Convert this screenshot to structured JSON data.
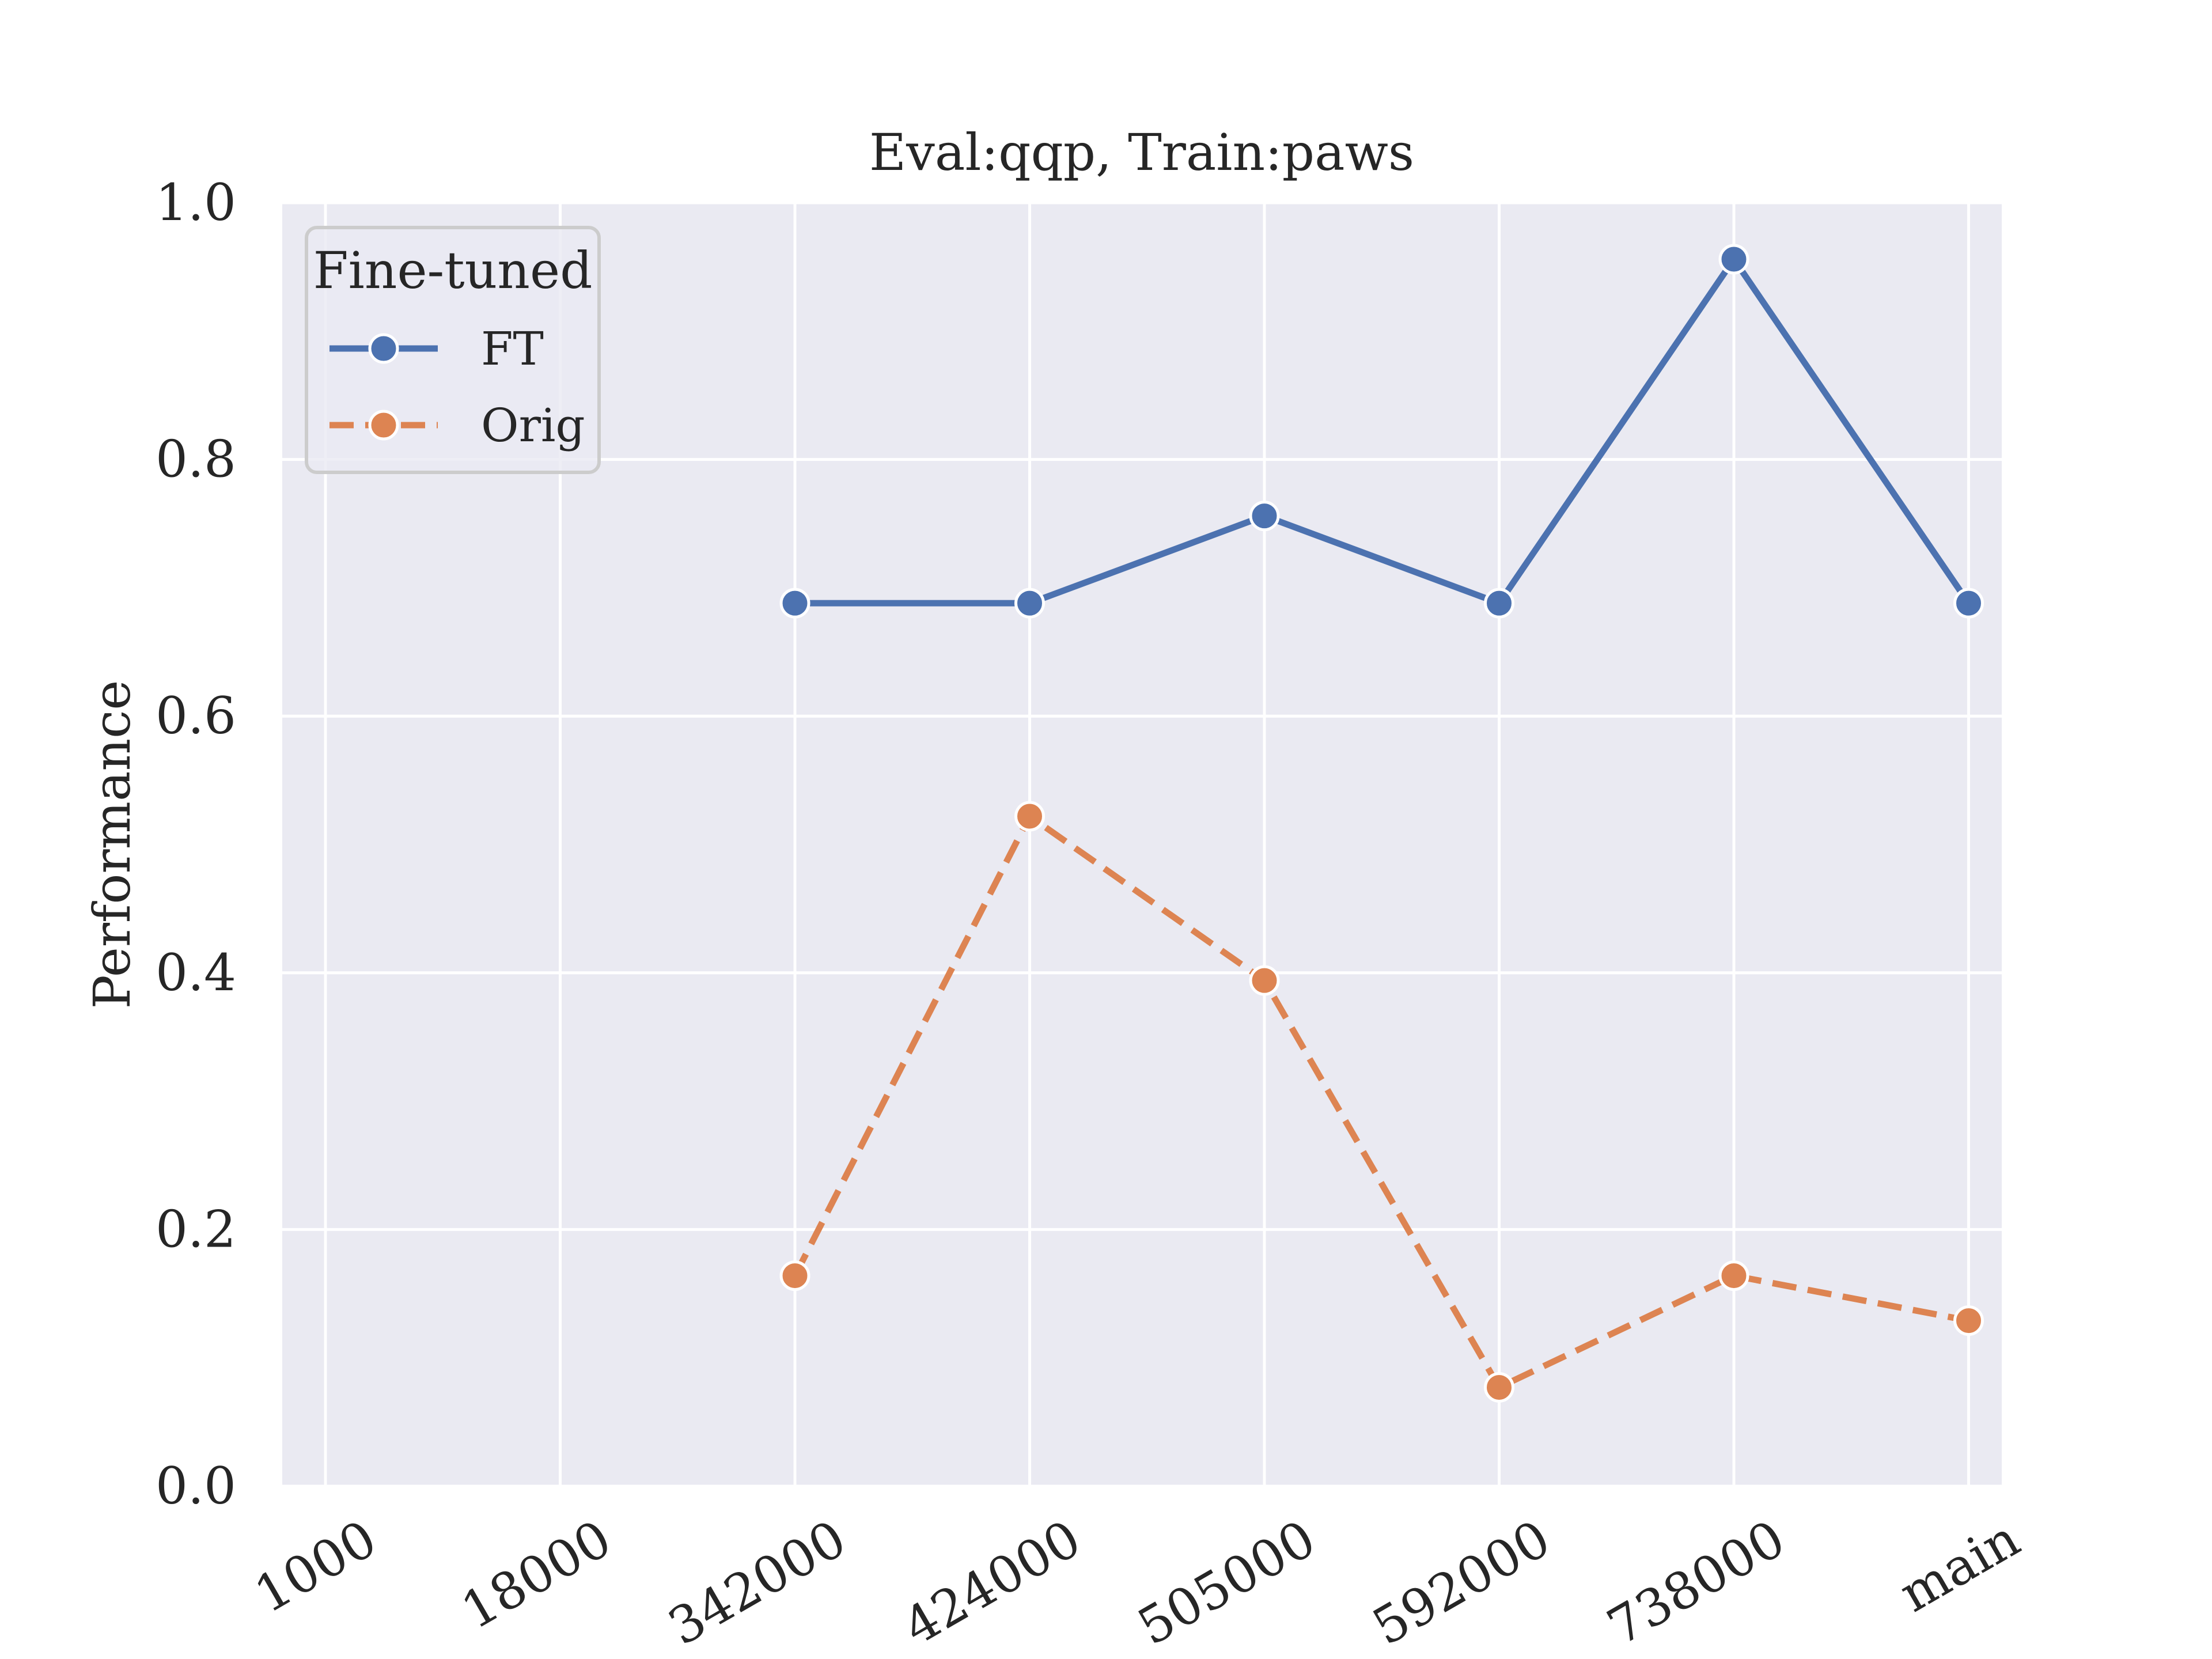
{
  "chart_data": {
    "type": "line",
    "title": "Eval:qqp, Train:paws",
    "xlabel": "",
    "ylabel": "Performance",
    "categories": [
      "1000",
      "18000",
      "342000",
      "424000",
      "505000",
      "592000",
      "738000",
      "main"
    ],
    "ylim": [
      0.0,
      1.0
    ],
    "yticks": [
      "0.0",
      "0.2",
      "0.4",
      "0.6",
      "0.8",
      "1.0"
    ],
    "grid": true,
    "legend": {
      "title": "Fine-tuned",
      "placement": "top-left"
    },
    "series": [
      {
        "name": "FT",
        "color": "#4c72b0",
        "dash": "solid",
        "values": [
          null,
          null,
          0.688,
          0.688,
          0.756,
          0.688,
          0.956,
          0.688
        ]
      },
      {
        "name": "Orig",
        "color": "#dd8452",
        "dash": "dashed",
        "values": [
          null,
          null,
          0.164,
          0.522,
          0.394,
          0.077,
          0.164,
          0.129
        ]
      }
    ],
    "plot_background": "#eaeaf2",
    "grid_color": "#ffffff"
  }
}
